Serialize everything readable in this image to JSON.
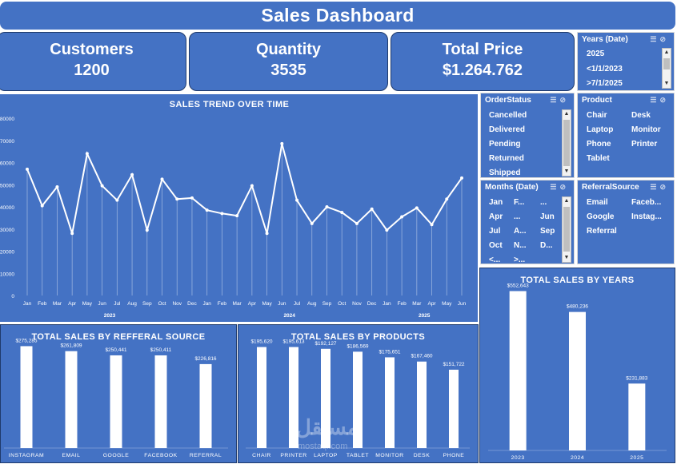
{
  "title": "Sales Dashboard",
  "kpis": {
    "customers": {
      "label": "Customers",
      "value": "1200"
    },
    "quantity": {
      "label": "Quantity",
      "value": "3535"
    },
    "total_price": {
      "label": "Total Price",
      "value": "$1.264.762"
    }
  },
  "slicers": {
    "years": {
      "title": "Years (Date)",
      "items": [
        "2025",
        "<1/1/2023",
        ">7/1/2025"
      ]
    },
    "order_status": {
      "title": "OrderStatus",
      "items": [
        "Cancelled",
        "Delivered",
        "Pending",
        "Returned",
        "Shipped"
      ]
    },
    "product": {
      "title": "Product",
      "items": [
        "Chair",
        "Desk",
        "Laptop",
        "Monitor",
        "Phone",
        "Printer",
        "Tablet"
      ]
    },
    "months": {
      "title": "Months (Date)",
      "items": [
        "Jan",
        "F...",
        "...",
        "Apr",
        "...",
        "Jun",
        "Jul",
        "A...",
        "Sep",
        "Oct",
        "N...",
        "D...",
        "<...",
        ">..."
      ]
    },
    "referral": {
      "title": "ReferralSource",
      "items": [
        "Email",
        "Faceb...",
        "Google",
        "Instag...",
        "Referral"
      ]
    }
  },
  "filter_icons": [
    "multi-select-icon",
    "clear-filter-icon"
  ],
  "colors": {
    "panel": "#4472c4",
    "border": "#1f3a6b",
    "mark": "#ffffff"
  },
  "chart_data": [
    {
      "type": "line",
      "title": "SALES TREND OVER TIME",
      "ylim": [
        0,
        80000
      ],
      "yticks": [
        "0",
        "10000",
        "20000",
        "30000",
        "40000",
        "50000",
        "60000",
        "70000",
        "80000"
      ],
      "x": [
        "Jan",
        "Feb",
        "Mar",
        "Apr",
        "May",
        "Jun",
        "Jul",
        "Aug",
        "Sep",
        "Oct",
        "Nov",
        "Dec",
        "Jan",
        "Feb",
        "Mar",
        "Apr",
        "May",
        "Jun",
        "Jul",
        "Aug",
        "Sep",
        "Oct",
        "Nov",
        "Dec",
        "Jan",
        "Feb",
        "Mar",
        "Apr",
        "May",
        "Jun"
      ],
      "year_labels": [
        {
          "label": "2023",
          "start": 0,
          "end": 11
        },
        {
          "label": "2024",
          "start": 12,
          "end": 23
        },
        {
          "label": "2025",
          "start": 24,
          "end": 29
        }
      ],
      "values": [
        57000,
        40500,
        49000,
        28000,
        64000,
        49500,
        43000,
        54500,
        29500,
        52500,
        43500,
        44000,
        38500,
        37000,
        36000,
        49500,
        28000,
        68500,
        43000,
        32500,
        40000,
        37500,
        32500,
        39000,
        29500,
        35500,
        39500,
        32000,
        43500,
        53000
      ]
    },
    {
      "type": "bar",
      "title": "TOTAL SALES BY REFFERAL SOURCE",
      "categories": [
        "INSTAGRAM",
        "EMAIL",
        "GOOGLE",
        "FACEBOOK",
        "REFERRAL"
      ],
      "values": [
        275285,
        261809,
        250441,
        250411,
        226816
      ],
      "labels": [
        "$275,285",
        "$261,809",
        "$250,441",
        "$250,411",
        "$226,816"
      ],
      "ylim": [
        0,
        300000
      ]
    },
    {
      "type": "bar",
      "title": "TOTAL SALES BY PRODUCTS",
      "categories": [
        "CHAIR",
        "PRINTER",
        "LAPTOP",
        "TABLET",
        "MONITOR",
        "DESK",
        "PHONE"
      ],
      "values": [
        195620,
        195613,
        192127,
        186569,
        175651,
        167460,
        151722
      ],
      "labels": [
        "$195,620",
        "$195,613",
        "$192,127",
        "$186,569",
        "$175,651",
        "$167,460",
        "$151,722"
      ],
      "ylim": [
        0,
        215000
      ]
    },
    {
      "type": "bar",
      "title": "TOTAL SALES BY YEARS",
      "categories": [
        "2023",
        "2024",
        "2025"
      ],
      "values": [
        552643,
        480236,
        231883
      ],
      "labels": [
        "$552,643",
        "$480,236",
        "$231,883"
      ],
      "ylim": [
        0,
        590000
      ]
    }
  ],
  "watermark": {
    "text": "مستقل",
    "sub": "mostaql.com"
  }
}
